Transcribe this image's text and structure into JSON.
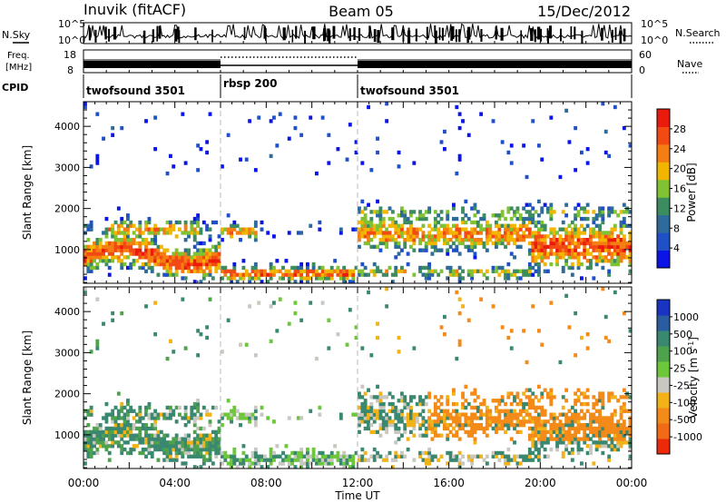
{
  "header": {
    "station": "Inuvik (fitACF)",
    "beam": "Beam 05",
    "date": "15/Dec/2012"
  },
  "chart_data": {
    "type": "heatmap",
    "xlabel": "Time UT",
    "xlim_hours": [
      0,
      24
    ],
    "x_tick_labels": [
      "00:00",
      "04:00",
      "08:00",
      "12:00",
      "16:00",
      "20:00",
      "00:00"
    ],
    "x_tick_hours": [
      0,
      4,
      8,
      12,
      16,
      20,
      24
    ],
    "mode_change_hours": [
      6,
      12
    ],
    "ylabel": "Slant Range [km]",
    "ylim_km": [
      180,
      4600
    ],
    "y_ticks": [
      1000,
      2000,
      3000,
      4000
    ],
    "nsky": {
      "label": "N.Sky",
      "top_label": "10^5",
      "bottom_label": "10^0"
    },
    "nsearch": {
      "label": "N.Search",
      "top_label": "10^5",
      "bottom_label": "10^0"
    },
    "freq": {
      "label_line1": "Freq.",
      "label_line2": "[MHz]",
      "ticks": [
        {
          "label": "18",
          "value": 18
        },
        {
          "label": "8",
          "value": 8
        }
      ]
    },
    "nave": {
      "label": "Nave",
      "ticks": [
        {
          "label": "60",
          "value": 60
        },
        {
          "label": "0",
          "value": 0
        }
      ]
    },
    "cpid": {
      "label": "CPID",
      "segments": [
        {
          "name": "twofsound 3501",
          "start_h": 0,
          "end_h": 6
        },
        {
          "name": "rbsp 200",
          "start_h": 6,
          "end_h": 12
        },
        {
          "name": "twofsound 3501",
          "start_h": 12,
          "end_h": 24
        }
      ]
    },
    "power": {
      "label": "Power [dB]",
      "colorbar_ticks": [
        "4",
        "8",
        "12",
        "16",
        "20",
        "24",
        "28"
      ],
      "colors": [
        "#0a14e6",
        "#1f50c8",
        "#2e6a9a",
        "#3d8c60",
        "#7fc234",
        "#f2b600",
        "#f47e12",
        "#f24a12",
        "#ea1a0c"
      ]
    },
    "velocity": {
      "label": "Velocity [m s",
      "label_superscript": "-1",
      "label_close": "]",
      "colorbar_ticks": [
        "1000",
        "500",
        "100",
        "25",
        "-25",
        "-100",
        "-500",
        "-1000"
      ],
      "colors": [
        "#1834c0",
        "#2a5ca0",
        "#3a8870",
        "#4fa24c",
        "#6cc83a",
        "#c8c8c0",
        "#f2b218",
        "#f48a18",
        "#f26a16",
        "#ec2a0a"
      ]
    }
  }
}
